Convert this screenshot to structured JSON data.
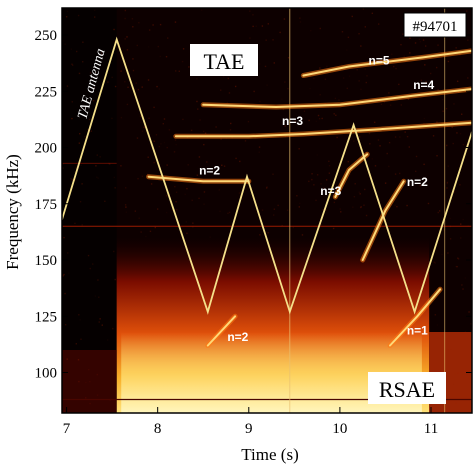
{
  "chart_data": {
    "type": "heatmap",
    "xlabel": "Time (s)",
    "ylabel": "Frequency (kHz)",
    "xlim": [
      6.95,
      11.45
    ],
    "ylim": [
      82,
      262
    ],
    "x_ticks": [
      7,
      8,
      9,
      10,
      11
    ],
    "y_ticks": [
      100,
      125,
      150,
      175,
      200,
      225,
      250
    ],
    "shot_label": "#94701",
    "tae_label": "TAE",
    "rsae_label": "RSAE",
    "antenna": {
      "label": "TAE antenna",
      "color": "#f5e08a",
      "sweep": [
        {
          "t": 6.95,
          "f": 168
        },
        {
          "t": 7.55,
          "f": 248
        },
        {
          "t": 8.55,
          "f": 127
        },
        {
          "t": 8.98,
          "f": 187
        },
        {
          "t": 9.45,
          "f": 127
        },
        {
          "t": 10.15,
          "f": 210
        },
        {
          "t": 10.82,
          "f": 127
        },
        {
          "t": 11.45,
          "f": 207
        }
      ]
    },
    "modes": [
      {
        "label": "n=5",
        "points": [
          [
            9.6,
            232
          ],
          [
            10.1,
            236
          ],
          [
            10.9,
            240
          ],
          [
            11.45,
            243
          ]
        ]
      },
      {
        "label": "n=4",
        "points": [
          [
            8.5,
            219
          ],
          [
            9.3,
            218
          ],
          [
            10.0,
            219
          ],
          [
            10.8,
            223
          ],
          [
            11.45,
            226
          ]
        ]
      },
      {
        "label": "n=3",
        "points": [
          [
            8.2,
            205
          ],
          [
            9.0,
            205
          ],
          [
            9.6,
            206
          ],
          [
            10.4,
            208
          ],
          [
            11.45,
            211
          ]
        ]
      },
      {
        "label": "n=2",
        "points": [
          [
            7.9,
            187
          ],
          [
            8.5,
            185
          ],
          [
            9.0,
            185
          ]
        ]
      },
      {
        "label": "n=3",
        "points": [
          [
            9.95,
            178
          ],
          [
            10.1,
            190
          ],
          [
            10.3,
            197
          ]
        ]
      },
      {
        "label": "n=2",
        "points": [
          [
            10.25,
            150
          ],
          [
            10.5,
            172
          ],
          [
            10.7,
            185
          ]
        ]
      },
      {
        "label": "n=1",
        "points": [
          [
            10.55,
            112
          ],
          [
            10.85,
            125
          ],
          [
            11.1,
            137
          ]
        ]
      },
      {
        "label": "n=2",
        "points": [
          [
            8.85,
            125
          ],
          [
            8.55,
            112
          ]
        ]
      }
    ],
    "mode_labels": [
      {
        "text": "n=5",
        "t": 10.43,
        "f": 237
      },
      {
        "text": "n=4",
        "t": 10.92,
        "f": 226
      },
      {
        "text": "n=3",
        "t": 9.48,
        "f": 210
      },
      {
        "text": "n=2",
        "t": 8.57,
        "f": 188
      },
      {
        "text": "n=3",
        "t": 9.9,
        "f": 179
      },
      {
        "text": "n=2",
        "t": 10.85,
        "f": 183
      },
      {
        "text": "n=2",
        "t": 8.88,
        "f": 114
      },
      {
        "text": "n=1",
        "t": 10.85,
        "f": 117
      }
    ],
    "colors": {
      "background": "#0d0000",
      "low_frequency_band": "#f7a51f",
      "hot_core": "#fff0a0",
      "mode": "#ff7a12"
    }
  }
}
